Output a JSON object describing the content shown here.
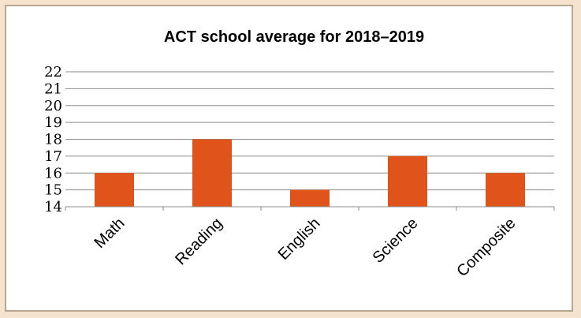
{
  "chart_data": {
    "type": "bar",
    "title": "ACT school average for 2018–2019",
    "xlabel": "",
    "ylabel": "",
    "categories": [
      "Math",
      "Reading",
      "English",
      "Science",
      "Composite"
    ],
    "values": [
      16,
      18,
      15,
      17,
      16
    ],
    "ylim": [
      14,
      22
    ],
    "yticks": [
      14,
      15,
      16,
      17,
      18,
      19,
      20,
      21,
      22
    ],
    "grid": true,
    "legend": "none",
    "bar_color": "#e0531b"
  }
}
